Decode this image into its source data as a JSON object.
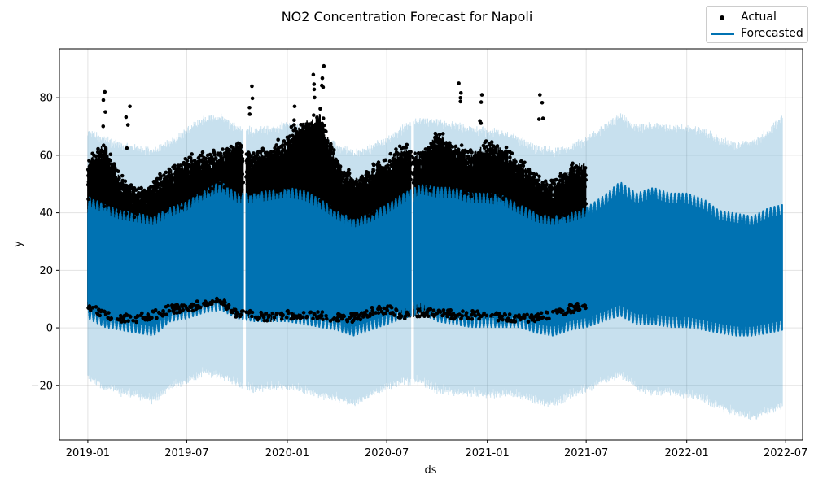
{
  "chart_data": {
    "type": "line",
    "title": "NO2 Concentration Forecast for Napoli",
    "xlabel": "ds",
    "ylabel": "y",
    "x_range": [
      "2018-11-10",
      "2022-08-01"
    ],
    "ylim": [
      -39,
      97
    ],
    "x_ticks": [
      "2019-01",
      "2019-07",
      "2020-01",
      "2020-07",
      "2021-01",
      "2021-07",
      "2022-01",
      "2022-07"
    ],
    "y_ticks": [
      -20,
      0,
      20,
      40,
      60,
      80
    ],
    "grid": true,
    "legend_position": "top-right",
    "legend": [
      {
        "label": "Actual",
        "marker": "dot",
        "color": "#000000"
      },
      {
        "label": "Forecasted",
        "marker": "line",
        "color": "#0072B2"
      }
    ],
    "actual_period": [
      "2019-01-01",
      "2021-06-30"
    ],
    "forecast_period": [
      "2019-01-01",
      "2022-06-25"
    ],
    "gaps": [
      {
        "start": "2019-10-13",
        "end": "2019-10-17"
      },
      {
        "start": "2020-08-15",
        "end": "2020-08-18"
      }
    ],
    "series": [
      {
        "name": "Forecasted",
        "color": "#0072B2",
        "dates": [
          "2019-01-01",
          "2019-02-01",
          "2019-03-01",
          "2019-04-01",
          "2019-05-01",
          "2019-06-01",
          "2019-07-01",
          "2019-08-01",
          "2019-09-01",
          "2019-10-01",
          "2019-11-01",
          "2019-12-01",
          "2020-01-01",
          "2020-02-01",
          "2020-03-01",
          "2020-04-01",
          "2020-05-01",
          "2020-06-01",
          "2020-07-01",
          "2020-08-01",
          "2020-09-01",
          "2020-10-01",
          "2020-11-01",
          "2020-12-01",
          "2021-01-01",
          "2021-02-01",
          "2021-03-01",
          "2021-04-01",
          "2021-05-01",
          "2021-06-01",
          "2021-07-01",
          "2021-08-01",
          "2021-09-01",
          "2021-10-01",
          "2021-11-01",
          "2021-12-01",
          "2022-01-01",
          "2022-02-01",
          "2022-03-01",
          "2022-04-01",
          "2022-05-01",
          "2022-06-01",
          "2022-06-25"
        ],
        "upper": [
          46,
          43,
          41,
          40,
          39,
          42,
          44,
          48,
          51,
          47,
          47,
          48,
          49,
          48,
          45,
          41,
          38,
          40,
          43,
          47,
          50,
          49,
          49,
          47,
          47,
          46,
          43,
          40,
          39,
          40,
          42,
          46,
          51,
          47,
          49,
          47,
          47,
          45,
          41,
          40,
          39,
          42,
          43
        ],
        "lower": [
          3,
          0,
          -1,
          -2,
          -3,
          2,
          3,
          5,
          6,
          3,
          2,
          2,
          2,
          1,
          0,
          -1,
          -3,
          -1,
          1,
          3,
          5,
          2,
          1,
          0,
          0,
          0,
          0,
          -2,
          -3,
          -1,
          0,
          2,
          4,
          1,
          1,
          0,
          0,
          -1,
          -2,
          -3,
          -3,
          -2,
          -1
        ],
        "interval_upper": [
          70,
          67,
          65,
          64,
          63,
          66,
          70,
          74,
          75,
          71,
          70,
          71,
          72,
          71,
          68,
          65,
          62,
          64,
          67,
          71,
          74,
          73,
          72,
          71,
          70,
          69,
          67,
          64,
          63,
          64,
          67,
          71,
          75,
          71,
          72,
          71,
          71,
          70,
          67,
          65,
          66,
          70,
          75
        ],
        "interval_lower": [
          -19,
          -22,
          -24,
          -25,
          -27,
          -22,
          -20,
          -17,
          -18,
          -21,
          -23,
          -22,
          -22,
          -23,
          -25,
          -26,
          -28,
          -25,
          -22,
          -20,
          -20,
          -23,
          -24,
          -24,
          -25,
          -24,
          -25,
          -27,
          -28,
          -25,
          -23,
          -20,
          -18,
          -22,
          -24,
          -24,
          -25,
          -26,
          -29,
          -31,
          -33,
          -30,
          -29
        ]
      },
      {
        "name": "Actual",
        "color": "#000000",
        "dates": [
          "2019-01-01",
          "2019-02-01",
          "2019-03-01",
          "2019-04-01",
          "2019-05-01",
          "2019-06-01",
          "2019-07-01",
          "2019-08-01",
          "2019-09-01",
          "2019-10-01",
          "2019-11-01",
          "2019-12-01",
          "2020-01-01",
          "2020-02-01",
          "2020-03-01",
          "2020-04-01",
          "2020-05-01",
          "2020-06-01",
          "2020-07-01",
          "2020-08-01",
          "2020-09-01",
          "2020-10-01",
          "2020-11-01",
          "2020-12-01",
          "2021-01-01",
          "2021-02-01",
          "2021-03-01",
          "2021-04-01",
          "2021-05-01",
          "2021-06-01",
          "2021-06-30"
        ],
        "upper": [
          58,
          65,
          52,
          47,
          50,
          55,
          58,
          60,
          60,
          65,
          60,
          62,
          66,
          72,
          75,
          58,
          52,
          55,
          58,
          63,
          60,
          68,
          64,
          60,
          65,
          62,
          58,
          52,
          50,
          56,
          58
        ],
        "lower": [
          6,
          3,
          2,
          2,
          3,
          5,
          5,
          7,
          8,
          3,
          3,
          2,
          3,
          3,
          3,
          2,
          2,
          4,
          5,
          3,
          4,
          4,
          3,
          3,
          3,
          2,
          2,
          2,
          3,
          5,
          6
        ],
        "peaks": [
          {
            "date": "2019-02-01",
            "value": 82
          },
          {
            "date": "2019-03-15",
            "value": 77
          },
          {
            "date": "2019-10-25",
            "value": 84
          },
          {
            "date": "2020-01-10",
            "value": 77
          },
          {
            "date": "2020-02-20",
            "value": 88
          },
          {
            "date": "2020-03-05",
            "value": 91
          },
          {
            "date": "2020-11-10",
            "value": 85
          },
          {
            "date": "2020-12-20",
            "value": 81
          },
          {
            "date": "2021-04-10",
            "value": 81
          }
        ]
      }
    ]
  }
}
